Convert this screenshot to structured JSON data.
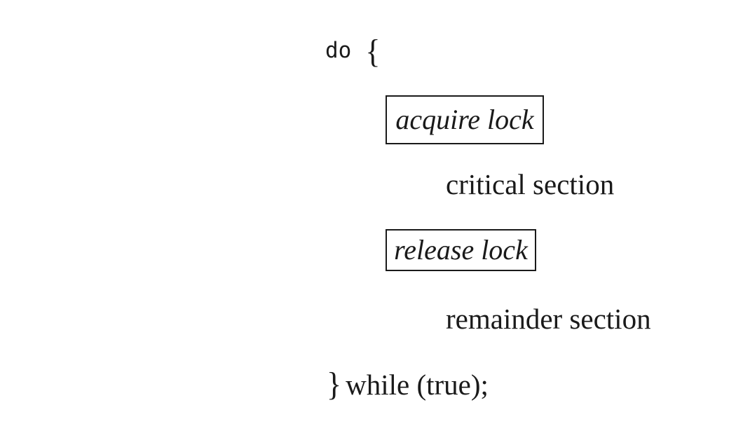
{
  "code": {
    "do_keyword": "do",
    "open_brace": "{",
    "acquire_lock": "acquire lock",
    "critical_section": "critical section",
    "release_lock": "release lock",
    "remainder_section": "remainder section",
    "close_brace": "}",
    "while_clause": "while (true);"
  }
}
